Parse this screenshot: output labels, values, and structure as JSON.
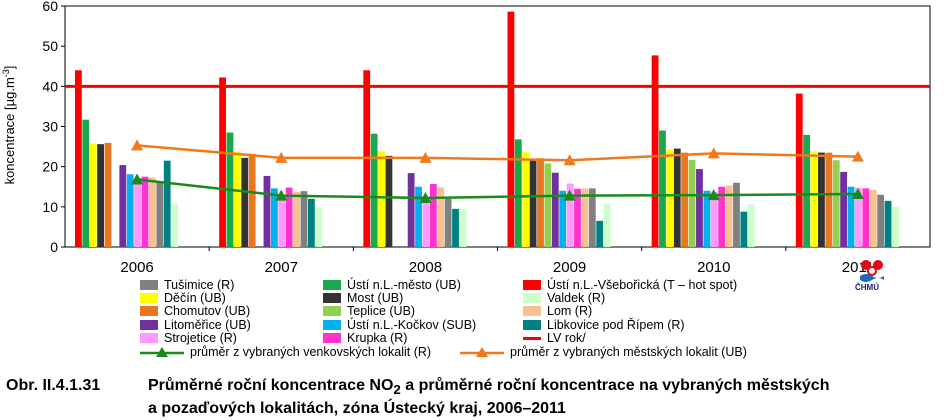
{
  "chart_data": {
    "type": "bar",
    "categories": [
      "2006",
      "2007",
      "2008",
      "2009",
      "2010",
      "2011"
    ],
    "ylabel": "koncentrace [µg.m⁻³]",
    "ylabel_main": "koncentrace [µg.m",
    "ylabel_sup": "-3",
    "ylabel_close": "]",
    "ylim": [
      0,
      60
    ],
    "yticks": [
      0,
      10,
      20,
      30,
      40,
      50,
      60
    ],
    "grid": false,
    "legend_position": "bottom",
    "series": [
      {
        "name": "Ústí n.L.-Všebořická (T – hot spot)",
        "color": "#ff0000",
        "values": [
          44,
          42.2,
          44,
          58.6,
          47.7,
          38.2
        ]
      },
      {
        "name": "Ústí n.L.-město (UB)",
        "color": "#1aa84c",
        "values": [
          31.7,
          28.5,
          28.2,
          26.8,
          29,
          27.9
        ]
      },
      {
        "name": "Děčín (UB)",
        "color": "#ffff00",
        "values": [
          25.8,
          23.8,
          23.8,
          23.6,
          24.3,
          23.8
        ]
      },
      {
        "name": "Most (UB)",
        "color": "#333333",
        "values": [
          25.6,
          22.2,
          22.7,
          21.7,
          24.5,
          23.5
        ]
      },
      {
        "name": "Chomutov (UB)",
        "color": "#e87722",
        "values": [
          25.9,
          23.2,
          null,
          22.1,
          23.5,
          23.5
        ]
      },
      {
        "name": "Teplice (UB)",
        "color": "#92d050",
        "values": [
          null,
          null,
          null,
          20.8,
          21.7,
          21.6
        ]
      },
      {
        "name": "Litoměřice (UB)",
        "color": "#7030a0",
        "values": [
          20.4,
          17.7,
          18.4,
          18.5,
          19.4,
          18.7
        ]
      },
      {
        "name": "Ústí n.L.-Kočkov (SUB)",
        "color": "#00b0f0",
        "values": [
          18.1,
          14.6,
          15,
          14,
          14,
          15
        ]
      },
      {
        "name": "Strojetice (R)",
        "color": "#ff99ff",
        "values": [
          17.2,
          12.2,
          11.5,
          15.8,
          13.7,
          14.8
        ]
      },
      {
        "name": "Krupka (R)",
        "color": "#ff33cc",
        "values": [
          17.5,
          14.8,
          15.7,
          14.5,
          15,
          14.6
        ]
      },
      {
        "name": "Lom (R)",
        "color": "#fac090",
        "values": [
          17.3,
          13.7,
          14.8,
          14.6,
          15.3,
          14.2
        ]
      },
      {
        "name": "Tušimice (R)",
        "color": "#808080",
        "values": [
          16.3,
          13.9,
          12,
          14.6,
          16,
          13
        ]
      },
      {
        "name": "Libkovice pod Řípem (R)",
        "color": "#008080",
        "values": [
          21.5,
          12,
          9.5,
          6.5,
          8.8,
          11.5
        ]
      },
      {
        "name": "Valdek (R)",
        "color": "#ccffcc",
        "values": [
          10.8,
          9.9,
          9.5,
          10.8,
          10.6,
          10
        ]
      }
    ],
    "lines": [
      {
        "name": "průměr z vybraných venkovských lokalit (R)",
        "color": "#1a8a1a",
        "marker": "triangle",
        "values": [
          16.8,
          12.8,
          12.2,
          12.8,
          12.9,
          13.2
        ]
      },
      {
        "name": "průměr z vybraných městských lokalit  (UB)",
        "color": "#f07a1a",
        "marker": "triangle",
        "values": [
          25.3,
          22.2,
          22.2,
          21.6,
          23.3,
          22.5
        ]
      }
    ],
    "limit_line": {
      "name": "LV rok/",
      "color": "#ff0000",
      "value": 40
    }
  },
  "legend": {
    "items": [
      {
        "label": "Tušimice (R)",
        "color": "#808080",
        "kind": "box"
      },
      {
        "label": "Ústí n.L.-město (UB)",
        "color": "#1aa84c",
        "kind": "box"
      },
      {
        "label": "Ústí n.L.-Všebořická (T – hot spot)",
        "color": "#ff0000",
        "kind": "box"
      },
      {
        "label": "Děčín (UB)",
        "color": "#ffff00",
        "kind": "box"
      },
      {
        "label": "Most (UB)",
        "color": "#333333",
        "kind": "box"
      },
      {
        "label": "Valdek (R)",
        "color": "#ccffcc",
        "kind": "box"
      },
      {
        "label": "Chomutov (UB)",
        "color": "#e87722",
        "kind": "box"
      },
      {
        "label": "Teplice (UB)",
        "color": "#92d050",
        "kind": "box"
      },
      {
        "label": "Lom (R)",
        "color": "#fac090",
        "kind": "box"
      },
      {
        "label": "Litoměřice (UB)",
        "color": "#7030a0",
        "kind": "box"
      },
      {
        "label": "Ústí n.L.-Kočkov (SUB)",
        "color": "#00b0f0",
        "kind": "box"
      },
      {
        "label": "Libkovice pod Řípem (R)",
        "color": "#008080",
        "kind": "box"
      },
      {
        "label": "Strojetice (R)",
        "color": "#ff99ff",
        "kind": "box"
      },
      {
        "label": "Krupka (R)",
        "color": "#ff33cc",
        "kind": "box"
      },
      {
        "label": "LV rok/",
        "color": "#ff0000",
        "kind": "line"
      },
      {
        "label": "průměr z vybraných venkovských lokalit (R)",
        "color": "#1a8a1a",
        "kind": "line-marker"
      },
      {
        "label": "průměr z vybraných městských lokalit  (UB)",
        "color": "#f07a1a",
        "kind": "line-marker"
      }
    ]
  },
  "logo": {
    "text": "ČHMÚ"
  },
  "caption": {
    "number": "Obr. II.4.1.31",
    "line1_a": "Průměrné roční koncentrace NO",
    "line1_sub": "2",
    "line1_b": " a průměrné roční koncentrace na vybraných městských",
    "line2": "a pozaďových lokalitách, zóna Ústecký kraj, 2006–2011"
  }
}
